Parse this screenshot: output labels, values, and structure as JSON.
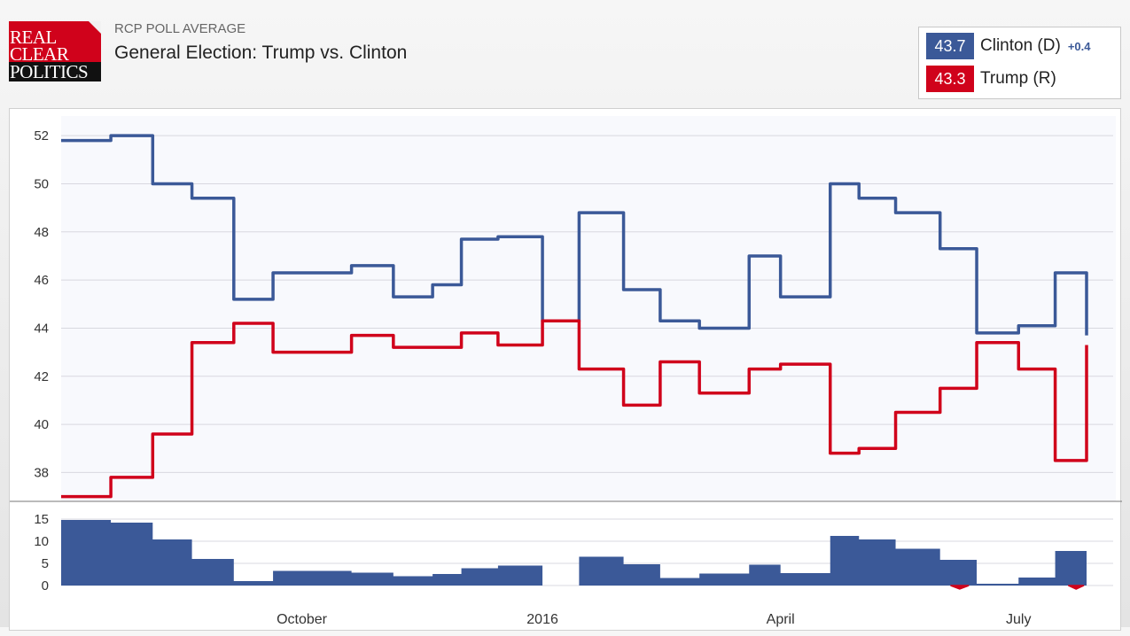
{
  "logo": {
    "line1": "REAL",
    "line2": "CLEAR",
    "line3": "POLITICS"
  },
  "header": {
    "subtitle": "RCP POLL AVERAGE",
    "title": "General Election: Trump vs. Clinton"
  },
  "legend": {
    "clinton": {
      "value": "43.7",
      "name": "Clinton (D)",
      "change": "+0.4",
      "color": "#3b5998"
    },
    "trump": {
      "value": "43.3",
      "name": "Trump (R)",
      "color": "#d0021b"
    }
  },
  "chart_data": [
    {
      "type": "line",
      "x": [
        "2015-07-01",
        "2015-07-20",
        "2015-08-05",
        "2015-08-20",
        "2015-09-05",
        "2015-09-20",
        "2015-10-01",
        "2015-10-20",
        "2015-11-05",
        "2015-11-20",
        "2015-12-01",
        "2015-12-15",
        "2016-01-01",
        "2016-01-15",
        "2016-02-01",
        "2016-02-15",
        "2016-03-01",
        "2016-03-20",
        "2016-04-01",
        "2016-04-20",
        "2016-05-01",
        "2016-05-15",
        "2016-06-01",
        "2016-06-15",
        "2016-07-01",
        "2016-07-15",
        "2016-07-27"
      ],
      "series": [
        {
          "name": "Clinton (D)",
          "color": "#3b5998",
          "values": [
            51.8,
            52.0,
            50.0,
            49.4,
            45.2,
            46.3,
            46.3,
            46.6,
            45.3,
            45.8,
            47.7,
            47.8,
            44.3,
            48.8,
            45.6,
            44.3,
            44.0,
            47.0,
            45.3,
            50.0,
            49.4,
            48.8,
            47.3,
            43.8,
            44.1,
            46.3,
            43.7
          ]
        },
        {
          "name": "Trump (R)",
          "color": "#d0021b",
          "values": [
            37.0,
            37.8,
            39.6,
            43.4,
            44.2,
            43.0,
            43.0,
            43.7,
            43.2,
            43.2,
            43.8,
            43.3,
            44.3,
            42.3,
            40.8,
            42.6,
            41.3,
            42.3,
            42.5,
            38.8,
            39.0,
            40.5,
            41.5,
            43.4,
            42.3,
            38.5,
            43.3
          ]
        }
      ],
      "ylim": [
        36.8,
        52.3
      ],
      "yticks": [
        "52",
        "50",
        "48",
        "46",
        "44",
        "42",
        "40",
        "38"
      ],
      "grid": true
    },
    {
      "type": "area",
      "x": [
        "2015-07-01",
        "2015-07-20",
        "2015-08-05",
        "2015-08-20",
        "2015-09-05",
        "2015-09-20",
        "2015-10-01",
        "2015-10-20",
        "2015-11-05",
        "2015-11-20",
        "2015-12-01",
        "2015-12-15",
        "2016-01-01",
        "2016-01-15",
        "2016-02-01",
        "2016-02-15",
        "2016-03-01",
        "2016-03-20",
        "2016-04-01",
        "2016-04-20",
        "2016-05-01",
        "2016-05-15",
        "2016-06-01",
        "2016-06-15",
        "2016-07-01",
        "2016-07-15",
        "2016-07-27"
      ],
      "values": [
        14.8,
        14.2,
        10.4,
        6.0,
        1.0,
        3.3,
        3.3,
        2.9,
        2.1,
        2.6,
        3.9,
        4.5,
        0.0,
        6.5,
        4.8,
        1.7,
        2.7,
        4.7,
        2.8,
        11.2,
        10.4,
        8.3,
        5.8,
        0.4,
        1.8,
        7.8,
        0.4
      ],
      "negative_segments": [
        {
          "from": "2016-06-05",
          "to": "2016-06-12"
        },
        {
          "from": "2016-07-20",
          "to": "2016-07-26"
        }
      ],
      "ylim": [
        -0.8,
        16
      ],
      "yticks": [
        "15",
        "10",
        "5",
        "0"
      ],
      "xticks": [
        "October",
        "2016",
        "April",
        "July"
      ],
      "grid": true
    }
  ]
}
